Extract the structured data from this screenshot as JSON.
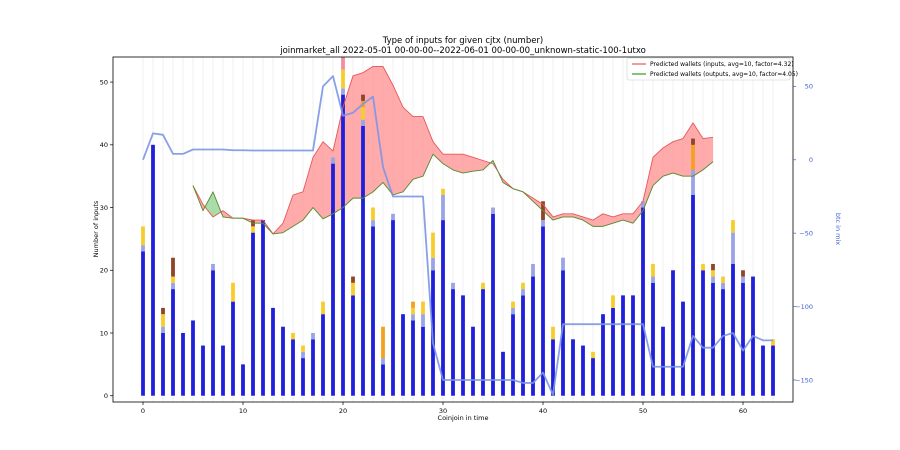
{
  "chart_data": {
    "type": "bar",
    "title": "Type of inputs for given cjtx (number)",
    "subtitle": "joinmarket_all 2022-05-01 00-00-00--2022-06-01 00-00-00_unknown-static-100-1utxo",
    "xlabel": "Coinjoin in time",
    "ylabel": "Number of inputs",
    "ylabel_right": "btc in mix",
    "xlim": [
      -3,
      65
    ],
    "ylim": [
      -1,
      54
    ],
    "ylim_right": [
      -165,
      70
    ],
    "xticks": [
      "0",
      "10",
      "20",
      "30",
      "40",
      "50",
      "60"
    ],
    "yticks": [
      "0",
      "10",
      "20",
      "30",
      "40",
      "50"
    ],
    "yticks_right": [
      "50",
      "0",
      "−50",
      "−100",
      "−150"
    ],
    "legend_position": "top-right",
    "grid_x": true,
    "bar_series": [
      {
        "color": "#1f1fdc",
        "values": [
          23,
          40,
          10,
          17,
          10,
          12,
          8,
          20,
          8,
          15,
          5,
          26,
          28,
          14,
          11,
          9,
          6,
          9,
          13,
          37,
          48,
          16,
          43,
          27,
          5,
          28,
          13,
          12,
          11,
          20,
          28,
          17,
          16,
          11,
          17,
          29,
          7,
          13,
          16,
          19,
          27,
          9,
          20,
          9,
          8,
          6,
          13,
          14,
          16,
          16,
          30,
          18,
          11,
          20,
          15,
          32,
          20,
          18,
          17,
          21,
          18,
          19,
          8,
          8
        ]
      },
      {
        "color": "#9aa4e8",
        "values": [
          1,
          0,
          1,
          1,
          0,
          0,
          0,
          1,
          0,
          0,
          0,
          0,
          0,
          0,
          0,
          0,
          1,
          1,
          0,
          1,
          1,
          0,
          1,
          1,
          1,
          1,
          0,
          1,
          2,
          2,
          4,
          1,
          0,
          0,
          0,
          1,
          0,
          1,
          1,
          2,
          1,
          0,
          2,
          0,
          0,
          0,
          0,
          0,
          0,
          0,
          1,
          1,
          0,
          0,
          0,
          4,
          0,
          1,
          1,
          5,
          1,
          0,
          0,
          0
        ]
      },
      {
        "color": "#f7cd2e",
        "values": [
          3,
          0,
          2,
          1,
          0,
          0,
          0,
          0,
          0,
          3,
          0,
          1,
          0,
          0,
          0,
          1,
          1,
          0,
          2,
          0,
          3,
          2,
          2,
          2,
          0,
          0,
          0,
          1,
          2,
          4,
          1,
          0,
          0,
          0,
          1,
          0,
          0,
          1,
          1,
          0,
          0,
          2,
          0,
          0,
          0,
          1,
          0,
          2,
          0,
          0,
          0,
          2,
          0,
          0,
          0,
          0,
          1,
          1,
          1,
          2,
          0,
          0,
          0,
          1
        ]
      },
      {
        "color": "#f3a21f",
        "values": [
          0,
          0,
          0,
          0,
          0,
          0,
          0,
          0,
          0,
          0,
          0,
          0,
          0,
          0,
          0,
          0,
          0,
          0,
          0,
          0,
          0,
          0,
          1,
          0,
          5,
          0,
          0,
          1,
          0,
          0,
          0,
          0,
          0,
          0,
          0,
          0,
          0,
          0,
          0,
          0,
          0,
          0,
          0,
          0,
          0,
          0,
          0,
          0,
          0,
          0,
          0,
          0,
          0,
          0,
          0,
          4,
          0,
          0,
          0,
          0,
          0,
          0,
          0,
          0
        ]
      },
      {
        "color": "#8e4528",
        "values": [
          0,
          0,
          1,
          3,
          0,
          0,
          0,
          0,
          0,
          0,
          0,
          1,
          0,
          0,
          0,
          0,
          0,
          0,
          0,
          0,
          0,
          1,
          1,
          0,
          0,
          0,
          0,
          0,
          0,
          0,
          0,
          0,
          0,
          0,
          0,
          0,
          0,
          0,
          0,
          0,
          3,
          0,
          0,
          0,
          0,
          0,
          0,
          0,
          0,
          0,
          0,
          0,
          0,
          0,
          0,
          1,
          0,
          1,
          0,
          0,
          1,
          0,
          0,
          0
        ]
      },
      {
        "color": "#f28ea0",
        "values": [
          0,
          0,
          0,
          0,
          0,
          0,
          0,
          0,
          0,
          0,
          0,
          0,
          0,
          0,
          0,
          0,
          0,
          0,
          0,
          0,
          2,
          0,
          0,
          0,
          0,
          0,
          0,
          0,
          0,
          0,
          0,
          0,
          0,
          0,
          0,
          0,
          0,
          0,
          0,
          0,
          0,
          0,
          0,
          0,
          0,
          0,
          0,
          0,
          0,
          0,
          0,
          0,
          0,
          0,
          0,
          0,
          0,
          0,
          0,
          0,
          0,
          0,
          0,
          0
        ]
      }
    ],
    "series": [
      {
        "name": "Predicted wallets (inputs, avg=10, factor=4.32)",
        "color": "#e8565a",
        "x": [
          5,
          6,
          7,
          8,
          9,
          10,
          11,
          12,
          13,
          14,
          15,
          16,
          17,
          18,
          19,
          20,
          21,
          22,
          23,
          24,
          25,
          26,
          27,
          28,
          29,
          30,
          31,
          32,
          33,
          34,
          35,
          36,
          37,
          38,
          39,
          40,
          41,
          42,
          43,
          44,
          45,
          46,
          47,
          48,
          49,
          50,
          51,
          52,
          53,
          54,
          55,
          56,
          57
        ],
        "values": [
          33.5,
          30.5,
          28.5,
          29.5,
          28.3,
          28.3,
          28,
          28,
          25.8,
          27.5,
          32,
          32.5,
          38,
          40.5,
          39,
          46,
          51,
          51.5,
          52.5,
          52.5,
          49.5,
          46,
          44.5,
          44.5,
          40.5,
          38.5,
          38.5,
          38.5,
          38,
          37.5,
          37,
          34.5,
          33,
          32.5,
          31.5,
          30.5,
          28.5,
          29,
          29,
          28.5,
          28,
          29,
          28.5,
          29,
          29,
          31,
          38,
          39.5,
          40.5,
          41,
          43.5,
          41,
          41.2
        ]
      },
      {
        "name": "Predicted wallets (outputs, avg=10, factor=4.05)",
        "color": "#2ca02c",
        "x": [
          5,
          6,
          7,
          8,
          9,
          10,
          11,
          12,
          13,
          14,
          15,
          16,
          17,
          18,
          19,
          20,
          21,
          22,
          23,
          24,
          25,
          26,
          27,
          28,
          29,
          30,
          31,
          32,
          33,
          34,
          35,
          36,
          37,
          38,
          39,
          40,
          41,
          42,
          43,
          44,
          45,
          46,
          47,
          48,
          49,
          50,
          51,
          52,
          53,
          54,
          55,
          56,
          57
        ],
        "values": [
          33.5,
          29.5,
          32.5,
          28.5,
          28.3,
          28.3,
          27.5,
          27.5,
          25.8,
          26,
          27,
          28,
          30,
          28.2,
          29,
          30,
          31.5,
          31.5,
          32.5,
          34,
          32,
          32.5,
          34.5,
          35,
          38.5,
          37,
          36,
          35.5,
          35.8,
          36,
          37.5,
          34,
          33,
          32.5,
          31,
          29.5,
          28,
          28.5,
          28.5,
          28,
          27,
          27,
          27.5,
          28,
          27.5,
          29.5,
          33.5,
          35,
          35.5,
          35,
          35,
          36,
          37.3
        ]
      },
      {
        "name": "btc in mix",
        "color": "#7b96e5",
        "axis": "right",
        "x": [
          0,
          1,
          2,
          3,
          4,
          5,
          6,
          7,
          8,
          9,
          10,
          11,
          12,
          13,
          14,
          15,
          16,
          17,
          18,
          19,
          20,
          21,
          22,
          23,
          24,
          25,
          26,
          27,
          28,
          29,
          30,
          31,
          32,
          33,
          34,
          35,
          36,
          37,
          38,
          39,
          40,
          41,
          42,
          43,
          44,
          45,
          46,
          47,
          48,
          49,
          50,
          51,
          52,
          53,
          54,
          55,
          56,
          57,
          58,
          59,
          60,
          61,
          62,
          63
        ],
        "values": [
          0,
          18,
          17,
          4,
          4,
          7,
          7,
          7,
          7,
          6.5,
          6.5,
          6.3,
          6.3,
          6.3,
          6.3,
          6.3,
          6.3,
          6.3,
          50,
          57,
          30,
          32,
          38,
          43,
          -5,
          -25,
          -25,
          -25,
          -25,
          -125,
          -150,
          -150,
          -150,
          -150,
          -150,
          -150,
          -150,
          -150,
          -152,
          -152,
          -145,
          -160,
          -112,
          -112,
          -112,
          -112,
          -112,
          -112,
          -112,
          -112,
          -112,
          -141,
          -141,
          -141,
          -141,
          -120,
          -128,
          -128,
          -120,
          -118,
          -130,
          -120,
          -123,
          -123
        ]
      }
    ],
    "legend": [
      "Predicted wallets (inputs, avg=10, factor=4.32)",
      "Predicted wallets (outputs, avg=10, factor=4.05)"
    ]
  }
}
